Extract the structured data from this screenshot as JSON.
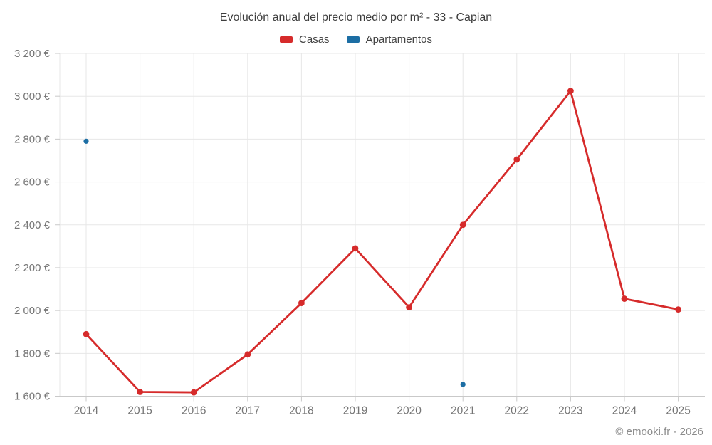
{
  "title": "Evolución anual del precio medio por m² - 33 - Capian",
  "legend": {
    "items": [
      {
        "label": "Casas",
        "color": "#d62b2b"
      },
      {
        "label": "Apartamentos",
        "color": "#1c6ea4"
      }
    ]
  },
  "footer": {
    "credit": "© emooki.fr - 2026"
  },
  "chart_data": {
    "type": "line",
    "title": "Evolución anual del precio medio por m² - 33 - Capian",
    "categories": [
      "2014",
      "2015",
      "2016",
      "2017",
      "2018",
      "2019",
      "2020",
      "2021",
      "2022",
      "2023",
      "2024",
      "2025"
    ],
    "series": [
      {
        "name": "Casas",
        "color": "#d62b2b",
        "values": [
          1890,
          1620,
          1618,
          1795,
          2035,
          2290,
          2015,
          2400,
          2705,
          3025,
          2055,
          2005
        ]
      },
      {
        "name": "Apartamentos",
        "color": "#1c6ea4",
        "values": [
          2790,
          null,
          null,
          null,
          null,
          null,
          null,
          1655,
          null,
          null,
          null,
          null
        ]
      }
    ],
    "xlabel": "",
    "ylabel": "",
    "ylim": [
      1600,
      3200
    ],
    "y_tick_step": 200,
    "y_tick_values": [
      1600,
      1800,
      2000,
      2200,
      2400,
      2600,
      2800,
      3000,
      3200
    ],
    "y_tick_labels": [
      "1 600 €",
      "1 800 €",
      "2 000 €",
      "2 200 €",
      "2 400 €",
      "2 600 €",
      "2 800 €",
      "3 000 €",
      "3 200 €"
    ],
    "grid": true,
    "legend_position": "top"
  },
  "colors": {
    "background": "#ffffff",
    "grid": "#e7e7e7",
    "axis": "#c9c9c9",
    "tick_label": "#757575",
    "title_text": "#3d3d3d",
    "legend_text": "#424242",
    "credit_text": "#8c8c8c"
  }
}
